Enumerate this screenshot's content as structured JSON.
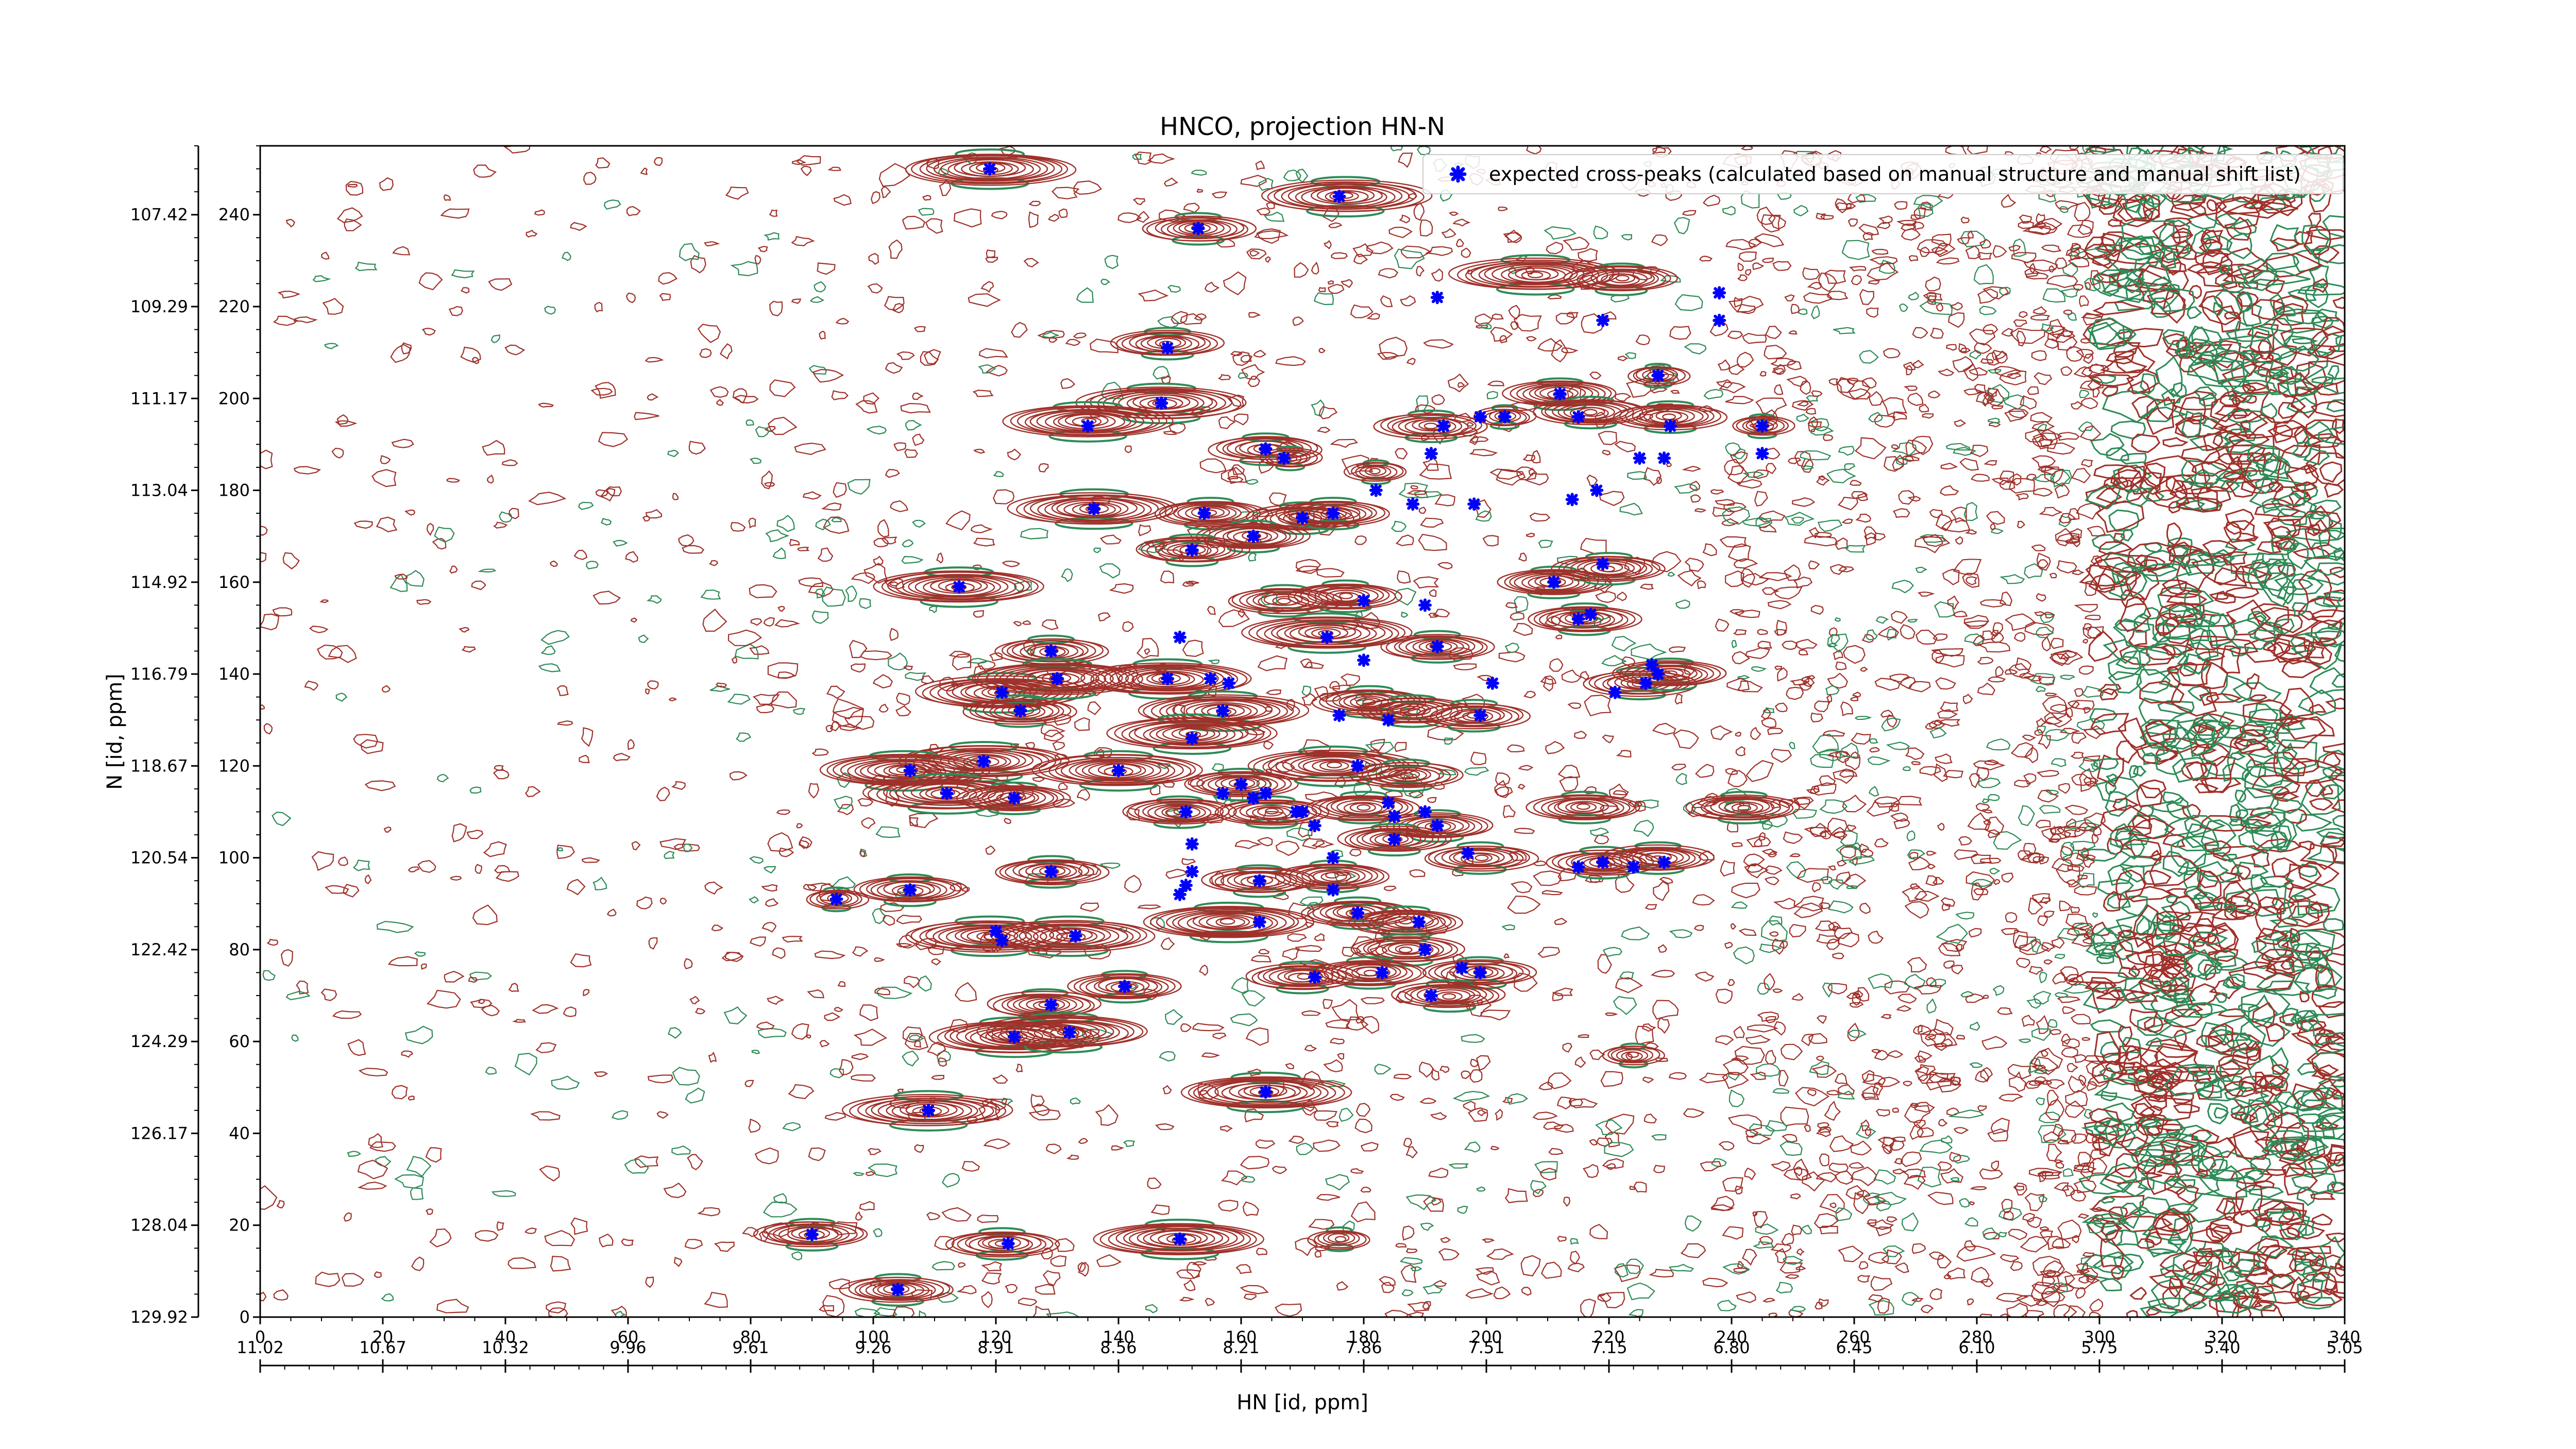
{
  "chart_data": {
    "type": "scatter",
    "title": "HNCO, projection HN-N",
    "xlabel": "HN [id, ppm]",
    "ylabel": "N [id, ppm]",
    "x_index_range": [
      0,
      340
    ],
    "y_index_range": [
      0,
      255
    ],
    "x_index_ticks": [
      "0",
      "20",
      "40",
      "60",
      "80",
      "100",
      "120",
      "140",
      "160",
      "180",
      "200",
      "220",
      "240",
      "260",
      "280",
      "300",
      "320",
      "340"
    ],
    "x_ppm_ticks": [
      "11.02",
      "10.67",
      "10.32",
      "9.96",
      "9.61",
      "9.26",
      "8.91",
      "8.56",
      "8.21",
      "7.86",
      "7.51",
      "7.15",
      "6.80",
      "6.45",
      "6.10",
      "5.75",
      "5.40",
      "5.05"
    ],
    "y_index_ticks": [
      "0",
      "20",
      "40",
      "60",
      "80",
      "100",
      "120",
      "140",
      "160",
      "180",
      "200",
      "220",
      "240"
    ],
    "y_ppm_ticks": [
      "129.92",
      "128.04",
      "126.17",
      "124.29",
      "122.42",
      "120.54",
      "118.67",
      "116.79",
      "114.92",
      "113.04",
      "111.17",
      "109.29",
      "107.42"
    ],
    "legend": {
      "position": "top-right",
      "label": "expected cross-peaks (calculated based on manual structure and manual shift list)"
    },
    "colors": {
      "positive_contour": "#a0312a",
      "negative_contour": "#2e8b57",
      "peak_marker": "#0000ff"
    },
    "contour_peaks": [
      [
        119,
        250,
        "l"
      ],
      [
        177,
        244,
        "l"
      ],
      [
        153,
        237,
        "m"
      ],
      [
        148,
        212,
        "m"
      ],
      [
        147,
        199,
        "l"
      ],
      [
        135,
        195,
        "l"
      ],
      [
        164,
        189,
        "m"
      ],
      [
        168,
        187,
        "s"
      ],
      [
        212,
        201,
        "m"
      ],
      [
        217,
        197,
        "m"
      ],
      [
        228,
        205,
        "s"
      ],
      [
        230,
        196,
        "m"
      ],
      [
        245,
        194,
        "s"
      ],
      [
        191,
        194,
        "m"
      ],
      [
        203,
        196,
        "s"
      ],
      [
        182,
        184,
        "s"
      ],
      [
        136,
        176,
        "l"
      ],
      [
        155,
        175,
        "m"
      ],
      [
        170,
        174,
        "m"
      ],
      [
        175,
        175,
        "m"
      ],
      [
        162,
        170,
        "m"
      ],
      [
        152,
        167,
        "m"
      ],
      [
        114,
        159,
        "l"
      ],
      [
        167,
        156,
        "m"
      ],
      [
        177,
        157,
        "m"
      ],
      [
        211,
        160,
        "m"
      ],
      [
        220,
        163,
        "m"
      ],
      [
        216,
        152,
        "m"
      ],
      [
        174,
        149,
        "l"
      ],
      [
        192,
        146,
        "m"
      ],
      [
        129,
        145,
        "m"
      ],
      [
        121,
        136,
        "l"
      ],
      [
        130,
        139,
        "l"
      ],
      [
        148,
        139,
        "l"
      ],
      [
        157,
        132,
        "l"
      ],
      [
        124,
        132,
        "m"
      ],
      [
        181,
        134,
        "m"
      ],
      [
        188,
        132,
        "m"
      ],
      [
        198,
        131,
        "m"
      ],
      [
        225,
        138,
        "m"
      ],
      [
        230,
        140,
        "m"
      ],
      [
        152,
        127,
        "l"
      ],
      [
        118,
        121,
        "l"
      ],
      [
        105,
        119,
        "l"
      ],
      [
        140,
        119,
        "l"
      ],
      [
        112,
        114,
        "l"
      ],
      [
        123,
        113,
        "m"
      ],
      [
        160,
        116,
        "m"
      ],
      [
        175,
        120,
        "l"
      ],
      [
        187,
        118,
        "m"
      ],
      [
        216,
        111,
        "m"
      ],
      [
        242,
        111,
        "m"
      ],
      [
        165,
        110,
        "m"
      ],
      [
        180,
        111,
        "m"
      ],
      [
        150,
        110,
        "m"
      ],
      [
        192,
        107,
        "m"
      ],
      [
        185,
        104,
        "m"
      ],
      [
        199,
        100,
        "m"
      ],
      [
        219,
        99,
        "m"
      ],
      [
        228,
        100,
        "m"
      ],
      [
        129,
        97,
        "m"
      ],
      [
        106,
        93,
        "m"
      ],
      [
        94,
        91,
        "s"
      ],
      [
        163,
        95,
        "m"
      ],
      [
        175,
        96,
        "m"
      ],
      [
        158,
        86,
        "l"
      ],
      [
        179,
        88,
        "m"
      ],
      [
        187,
        86,
        "m"
      ],
      [
        119,
        83,
        "l"
      ],
      [
        132,
        83,
        "l"
      ],
      [
        187,
        80,
        "m"
      ],
      [
        170,
        74,
        "m"
      ],
      [
        181,
        75,
        "m"
      ],
      [
        199,
        75,
        "m"
      ],
      [
        141,
        72,
        "m"
      ],
      [
        128,
        68,
        "m"
      ],
      [
        123,
        61,
        "l"
      ],
      [
        131,
        62,
        "l"
      ],
      [
        194,
        70,
        "m"
      ],
      [
        224,
        57,
        "s"
      ],
      [
        164,
        49,
        "l"
      ],
      [
        109,
        45,
        "l"
      ],
      [
        90,
        18,
        "m"
      ],
      [
        104,
        6,
        "m"
      ],
      [
        150,
        17,
        "l"
      ],
      [
        121,
        16,
        "m"
      ],
      [
        176,
        17,
        "s"
      ],
      [
        208,
        227,
        "l"
      ],
      [
        222,
        226,
        "m"
      ]
    ],
    "expected_peaks": [
      [
        119,
        250
      ],
      [
        176,
        244
      ],
      [
        153,
        237
      ],
      [
        148,
        211
      ],
      [
        147,
        199
      ],
      [
        135,
        194
      ],
      [
        164,
        189
      ],
      [
        167,
        187
      ],
      [
        212,
        201
      ],
      [
        228,
        205
      ],
      [
        230,
        194
      ],
      [
        215,
        196
      ],
      [
        225,
        187
      ],
      [
        229,
        187
      ],
      [
        245,
        194
      ],
      [
        245,
        188
      ],
      [
        193,
        194
      ],
      [
        191,
        188
      ],
      [
        199,
        196
      ],
      [
        218,
        180
      ],
      [
        182,
        180
      ],
      [
        198,
        177
      ],
      [
        214,
        178
      ],
      [
        136,
        176
      ],
      [
        154,
        175
      ],
      [
        170,
        174
      ],
      [
        175,
        175
      ],
      [
        162,
        170
      ],
      [
        152,
        167
      ],
      [
        114,
        159
      ],
      [
        211,
        160
      ],
      [
        219,
        164
      ],
      [
        215,
        152
      ],
      [
        217,
        153
      ],
      [
        180,
        156
      ],
      [
        190,
        155
      ],
      [
        174,
        148
      ],
      [
        192,
        146
      ],
      [
        129,
        145
      ],
      [
        150,
        148
      ],
      [
        121,
        136
      ],
      [
        130,
        139
      ],
      [
        148,
        139
      ],
      [
        157,
        132
      ],
      [
        155,
        139
      ],
      [
        124,
        132
      ],
      [
        180,
        143
      ],
      [
        176,
        131
      ],
      [
        184,
        130
      ],
      [
        199,
        131
      ],
      [
        201,
        138
      ],
      [
        221,
        136
      ],
      [
        226,
        138
      ],
      [
        227,
        142
      ],
      [
        228,
        140
      ],
      [
        152,
        126
      ],
      [
        118,
        121
      ],
      [
        106,
        119
      ],
      [
        140,
        119
      ],
      [
        112,
        114
      ],
      [
        123,
        113
      ],
      [
        157,
        114
      ],
      [
        160,
        116
      ],
      [
        162,
        113
      ],
      [
        164,
        114
      ],
      [
        179,
        120
      ],
      [
        170,
        110
      ],
      [
        169,
        110
      ],
      [
        184,
        112
      ],
      [
        185,
        109
      ],
      [
        151,
        110
      ],
      [
        152,
        103
      ],
      [
        172,
        107
      ],
      [
        192,
        107
      ],
      [
        190,
        110
      ],
      [
        175,
        100
      ],
      [
        185,
        104
      ],
      [
        197,
        101
      ],
      [
        219,
        99
      ],
      [
        215,
        98
      ],
      [
        224,
        98
      ],
      [
        229,
        99
      ],
      [
        129,
        97
      ],
      [
        152,
        97
      ],
      [
        150,
        92
      ],
      [
        151,
        94
      ],
      [
        106,
        93
      ],
      [
        94,
        91
      ],
      [
        163,
        95
      ],
      [
        175,
        93
      ],
      [
        179,
        88
      ],
      [
        163,
        86
      ],
      [
        189,
        86
      ],
      [
        120,
        84
      ],
      [
        121,
        82
      ],
      [
        133,
        83
      ],
      [
        190,
        80
      ],
      [
        172,
        74
      ],
      [
        183,
        75
      ],
      [
        196,
        76
      ],
      [
        199,
        75
      ],
      [
        141,
        72
      ],
      [
        129,
        68
      ],
      [
        123,
        61
      ],
      [
        132,
        62
      ],
      [
        191,
        70
      ],
      [
        164,
        49
      ],
      [
        109,
        45
      ],
      [
        90,
        18
      ],
      [
        104,
        6
      ],
      [
        150,
        17
      ],
      [
        122,
        16
      ],
      [
        192,
        222
      ],
      [
        219,
        217
      ],
      [
        238,
        223
      ],
      [
        238,
        217
      ],
      [
        188,
        177
      ],
      [
        203,
        196
      ],
      [
        158,
        138
      ]
    ]
  }
}
